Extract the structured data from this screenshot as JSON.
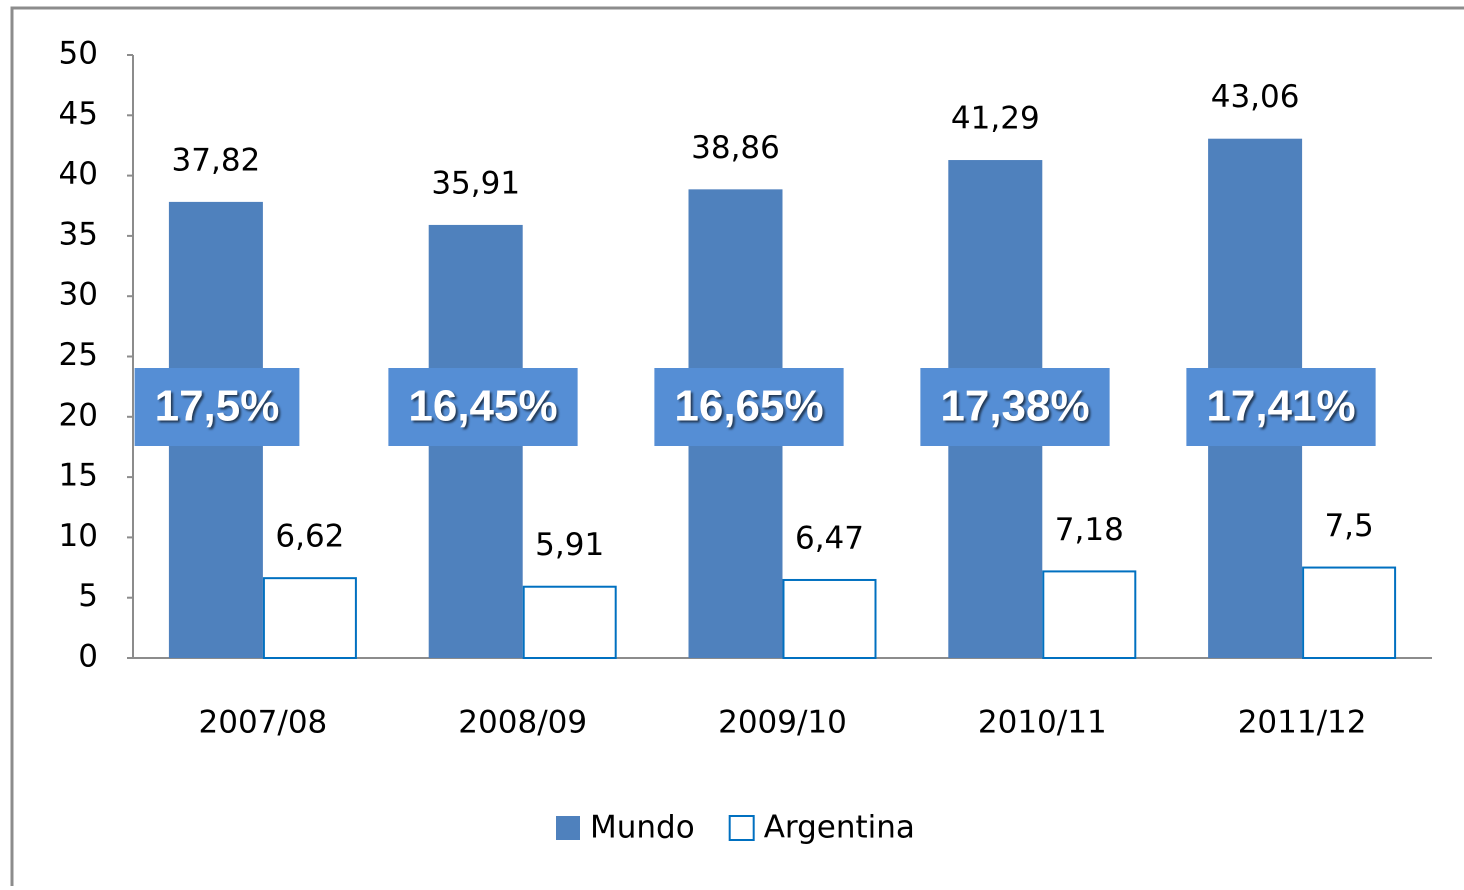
{
  "chart_data": {
    "type": "bar",
    "categories": [
      "2007/08",
      "2008/09",
      "2009/10",
      "2010/11",
      "2011/12"
    ],
    "series": [
      {
        "name": "Mundo",
        "color": "#4f81bd",
        "values": [
          37.82,
          35.91,
          38.86,
          41.29,
          43.06
        ],
        "value_labels": [
          "37,82",
          "35,91",
          "38,86",
          "41,29",
          "43,06"
        ]
      },
      {
        "name": "Argentina",
        "color": "#ffffff",
        "edgecolor": "#0070c0",
        "values": [
          6.62,
          5.91,
          6.47,
          7.18,
          7.5
        ],
        "value_labels": [
          "6,62",
          "5,91",
          "6,47",
          "7,18",
          "7,5"
        ]
      }
    ],
    "annotations": [
      "17,5%",
      "16,45%",
      "16,65%",
      "17,38%",
      "17,41%"
    ],
    "annotation_color": "#558ed5",
    "ylim": [
      0,
      50
    ],
    "yticks": [
      0,
      5,
      10,
      15,
      20,
      25,
      30,
      35,
      40,
      45,
      50
    ],
    "legend": "bottom"
  }
}
